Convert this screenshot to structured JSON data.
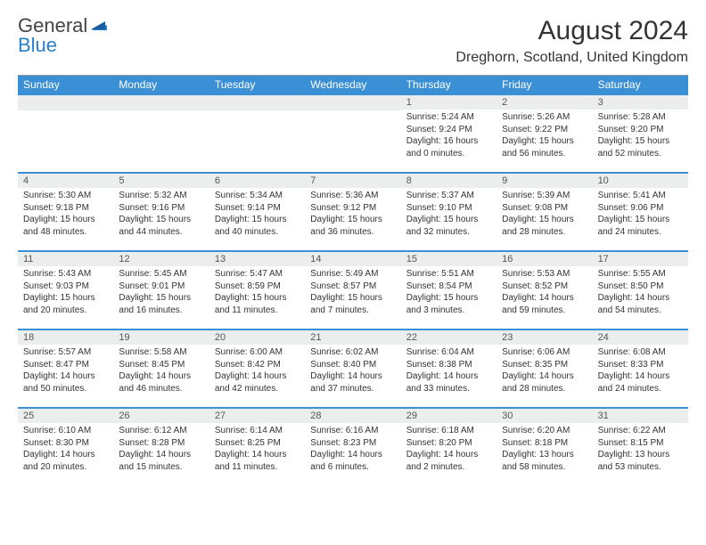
{
  "logo": {
    "line1": "General",
    "line2": "Blue"
  },
  "title": {
    "month": "August 2024",
    "location": "Dreghorn, Scotland, United Kingdom"
  },
  "dayNames": [
    "Sunday",
    "Monday",
    "Tuesday",
    "Wednesday",
    "Thursday",
    "Friday",
    "Saturday"
  ],
  "colors": {
    "headerBg": "#3b8fd4",
    "numBg": "#eceded",
    "accent": "#2a7fc9"
  },
  "weeks": [
    [
      {
        "n": "",
        "sr": "",
        "ss": "",
        "dl": ""
      },
      {
        "n": "",
        "sr": "",
        "ss": "",
        "dl": ""
      },
      {
        "n": "",
        "sr": "",
        "ss": "",
        "dl": ""
      },
      {
        "n": "",
        "sr": "",
        "ss": "",
        "dl": ""
      },
      {
        "n": "1",
        "sr": "Sunrise: 5:24 AM",
        "ss": "Sunset: 9:24 PM",
        "dl": "Daylight: 16 hours and 0 minutes."
      },
      {
        "n": "2",
        "sr": "Sunrise: 5:26 AM",
        "ss": "Sunset: 9:22 PM",
        "dl": "Daylight: 15 hours and 56 minutes."
      },
      {
        "n": "3",
        "sr": "Sunrise: 5:28 AM",
        "ss": "Sunset: 9:20 PM",
        "dl": "Daylight: 15 hours and 52 minutes."
      }
    ],
    [
      {
        "n": "4",
        "sr": "Sunrise: 5:30 AM",
        "ss": "Sunset: 9:18 PM",
        "dl": "Daylight: 15 hours and 48 minutes."
      },
      {
        "n": "5",
        "sr": "Sunrise: 5:32 AM",
        "ss": "Sunset: 9:16 PM",
        "dl": "Daylight: 15 hours and 44 minutes."
      },
      {
        "n": "6",
        "sr": "Sunrise: 5:34 AM",
        "ss": "Sunset: 9:14 PM",
        "dl": "Daylight: 15 hours and 40 minutes."
      },
      {
        "n": "7",
        "sr": "Sunrise: 5:36 AM",
        "ss": "Sunset: 9:12 PM",
        "dl": "Daylight: 15 hours and 36 minutes."
      },
      {
        "n": "8",
        "sr": "Sunrise: 5:37 AM",
        "ss": "Sunset: 9:10 PM",
        "dl": "Daylight: 15 hours and 32 minutes."
      },
      {
        "n": "9",
        "sr": "Sunrise: 5:39 AM",
        "ss": "Sunset: 9:08 PM",
        "dl": "Daylight: 15 hours and 28 minutes."
      },
      {
        "n": "10",
        "sr": "Sunrise: 5:41 AM",
        "ss": "Sunset: 9:06 PM",
        "dl": "Daylight: 15 hours and 24 minutes."
      }
    ],
    [
      {
        "n": "11",
        "sr": "Sunrise: 5:43 AM",
        "ss": "Sunset: 9:03 PM",
        "dl": "Daylight: 15 hours and 20 minutes."
      },
      {
        "n": "12",
        "sr": "Sunrise: 5:45 AM",
        "ss": "Sunset: 9:01 PM",
        "dl": "Daylight: 15 hours and 16 minutes."
      },
      {
        "n": "13",
        "sr": "Sunrise: 5:47 AM",
        "ss": "Sunset: 8:59 PM",
        "dl": "Daylight: 15 hours and 11 minutes."
      },
      {
        "n": "14",
        "sr": "Sunrise: 5:49 AM",
        "ss": "Sunset: 8:57 PM",
        "dl": "Daylight: 15 hours and 7 minutes."
      },
      {
        "n": "15",
        "sr": "Sunrise: 5:51 AM",
        "ss": "Sunset: 8:54 PM",
        "dl": "Daylight: 15 hours and 3 minutes."
      },
      {
        "n": "16",
        "sr": "Sunrise: 5:53 AM",
        "ss": "Sunset: 8:52 PM",
        "dl": "Daylight: 14 hours and 59 minutes."
      },
      {
        "n": "17",
        "sr": "Sunrise: 5:55 AM",
        "ss": "Sunset: 8:50 PM",
        "dl": "Daylight: 14 hours and 54 minutes."
      }
    ],
    [
      {
        "n": "18",
        "sr": "Sunrise: 5:57 AM",
        "ss": "Sunset: 8:47 PM",
        "dl": "Daylight: 14 hours and 50 minutes."
      },
      {
        "n": "19",
        "sr": "Sunrise: 5:58 AM",
        "ss": "Sunset: 8:45 PM",
        "dl": "Daylight: 14 hours and 46 minutes."
      },
      {
        "n": "20",
        "sr": "Sunrise: 6:00 AM",
        "ss": "Sunset: 8:42 PM",
        "dl": "Daylight: 14 hours and 42 minutes."
      },
      {
        "n": "21",
        "sr": "Sunrise: 6:02 AM",
        "ss": "Sunset: 8:40 PM",
        "dl": "Daylight: 14 hours and 37 minutes."
      },
      {
        "n": "22",
        "sr": "Sunrise: 6:04 AM",
        "ss": "Sunset: 8:38 PM",
        "dl": "Daylight: 14 hours and 33 minutes."
      },
      {
        "n": "23",
        "sr": "Sunrise: 6:06 AM",
        "ss": "Sunset: 8:35 PM",
        "dl": "Daylight: 14 hours and 28 minutes."
      },
      {
        "n": "24",
        "sr": "Sunrise: 6:08 AM",
        "ss": "Sunset: 8:33 PM",
        "dl": "Daylight: 14 hours and 24 minutes."
      }
    ],
    [
      {
        "n": "25",
        "sr": "Sunrise: 6:10 AM",
        "ss": "Sunset: 8:30 PM",
        "dl": "Daylight: 14 hours and 20 minutes."
      },
      {
        "n": "26",
        "sr": "Sunrise: 6:12 AM",
        "ss": "Sunset: 8:28 PM",
        "dl": "Daylight: 14 hours and 15 minutes."
      },
      {
        "n": "27",
        "sr": "Sunrise: 6:14 AM",
        "ss": "Sunset: 8:25 PM",
        "dl": "Daylight: 14 hours and 11 minutes."
      },
      {
        "n": "28",
        "sr": "Sunrise: 6:16 AM",
        "ss": "Sunset: 8:23 PM",
        "dl": "Daylight: 14 hours and 6 minutes."
      },
      {
        "n": "29",
        "sr": "Sunrise: 6:18 AM",
        "ss": "Sunset: 8:20 PM",
        "dl": "Daylight: 14 hours and 2 minutes."
      },
      {
        "n": "30",
        "sr": "Sunrise: 6:20 AM",
        "ss": "Sunset: 8:18 PM",
        "dl": "Daylight: 13 hours and 58 minutes."
      },
      {
        "n": "31",
        "sr": "Sunrise: 6:22 AM",
        "ss": "Sunset: 8:15 PM",
        "dl": "Daylight: 13 hours and 53 minutes."
      }
    ]
  ]
}
